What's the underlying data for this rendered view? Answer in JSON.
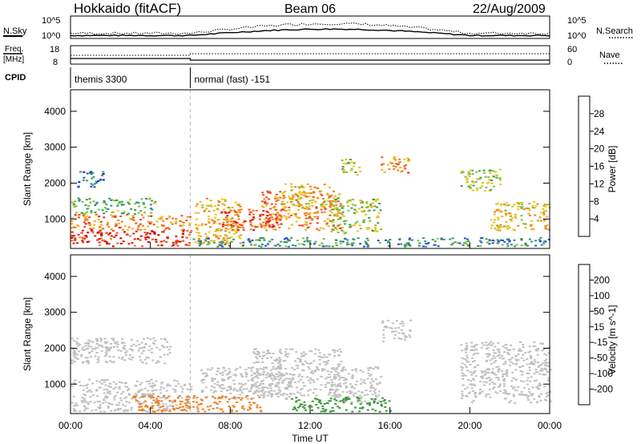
{
  "header": {
    "station": "Hokkaido (fitACF)",
    "beam": "Beam 06",
    "date": "22/Aug/2009"
  },
  "chart_data": [
    {
      "type": "line",
      "name": "noise-panel",
      "left_label": "N.Sky",
      "left_ticks": [
        "10^5",
        "10^0"
      ],
      "right_label": "N.Search",
      "right_ticks": [
        "10^5",
        "10^0"
      ]
    },
    {
      "type": "line",
      "name": "freq-panel",
      "left_label_1": "Freq.",
      "left_label_2": "[MHz]",
      "left_ticks": [
        "18",
        "8"
      ],
      "right_label": "Nave",
      "right_ticks": [
        "60",
        "0"
      ]
    },
    {
      "type": "table",
      "name": "cpid-panel",
      "label": "CPID",
      "segments": [
        {
          "start_hour": 0,
          "end_hour": 6,
          "text": "themis 3300"
        },
        {
          "start_hour": 6,
          "end_hour": 24,
          "text": "normal (fast) -151"
        }
      ]
    },
    {
      "type": "heatmap",
      "name": "power-panel",
      "ylabel": "Slant Range [km]",
      "yticks": [
        1000,
        2000,
        3000,
        4000
      ],
      "ylim": [
        180,
        4600
      ],
      "colorbar": {
        "label": "Power [dB]",
        "ticks": [
          4,
          8,
          12,
          16,
          20,
          24,
          28
        ],
        "range": [
          0,
          32
        ],
        "colors": [
          "#1010e0",
          "#2450d0",
          "#2f8f8f",
          "#40a040",
          "#80c040",
          "#d8d020",
          "#f4b020",
          "#f08020",
          "#f05020",
          "#e81818",
          "#d00000"
        ]
      },
      "regions": [
        {
          "t0": 0.0,
          "t1": 6.0,
          "r0": 250,
          "r1": 700,
          "v": 27
        },
        {
          "t0": 0.0,
          "t1": 6.0,
          "r0": 700,
          "r1": 1150,
          "v": 22
        },
        {
          "t0": 0.0,
          "t1": 4.2,
          "r0": 1150,
          "r1": 1600,
          "v": 11
        },
        {
          "t0": 0.3,
          "t1": 1.6,
          "r0": 1900,
          "r1": 2350,
          "v": 6
        },
        {
          "t0": 6.2,
          "t1": 8.5,
          "r0": 300,
          "r1": 1600,
          "v": 19
        },
        {
          "t0": 7.5,
          "t1": 10.5,
          "r0": 700,
          "r1": 1300,
          "v": 25
        },
        {
          "t0": 9.5,
          "t1": 13.5,
          "r0": 700,
          "r1": 1800,
          "v": 22
        },
        {
          "t0": 10.5,
          "t1": 13.0,
          "r0": 1300,
          "r1": 2000,
          "v": 18
        },
        {
          "t0": 13.0,
          "t1": 15.5,
          "r0": 600,
          "r1": 1600,
          "v": 14
        },
        {
          "t0": 15.5,
          "t1": 17.0,
          "r0": 2300,
          "r1": 2800,
          "v": 22
        },
        {
          "t0": 13.5,
          "t1": 14.5,
          "r0": 2200,
          "r1": 2700,
          "v": 14
        },
        {
          "t0": 19.5,
          "t1": 21.5,
          "r0": 1800,
          "r1": 2400,
          "v": 14
        },
        {
          "t0": 21.0,
          "t1": 24.0,
          "r0": 700,
          "r1": 1500,
          "v": 18
        },
        {
          "t0": 6.0,
          "t1": 24.0,
          "r0": 250,
          "r1": 500,
          "v": 8
        }
      ]
    },
    {
      "type": "heatmap",
      "name": "velocity-panel",
      "ylabel": "Slant Range [km]",
      "yticks": [
        1000,
        2000,
        3000,
        4000
      ],
      "ylim": [
        180,
        4600
      ],
      "xticks": [
        "00:00",
        "04:00",
        "08:00",
        "12:00",
        "16:00",
        "20:00",
        "00:00"
      ],
      "xlabel": "Time UT",
      "colorbar": {
        "label": "Velocity [m s^-1]",
        "ticks": [
          200,
          100,
          50,
          15,
          -15,
          -50,
          -100,
          -200
        ],
        "colors": [
          "#1a3cc8",
          "#3a8a8a",
          "#3a9a3a",
          "#66cc33",
          "#c0c0c0",
          "#f0b030",
          "#f08020",
          "#f05020",
          "#e01818"
        ]
      },
      "regions": [
        {
          "t0": 0.0,
          "t1": 6.0,
          "r0": 250,
          "r1": 1150,
          "v": 0
        },
        {
          "t0": 0.0,
          "t1": 5.0,
          "r0": 1600,
          "r1": 2300,
          "v": 0
        },
        {
          "t0": 6.5,
          "t1": 11.0,
          "r0": 600,
          "r1": 1500,
          "v": 0
        },
        {
          "t0": 9.0,
          "t1": 13.5,
          "r0": 700,
          "r1": 2000,
          "v": 0
        },
        {
          "t0": 13.0,
          "t1": 15.5,
          "r0": 500,
          "r1": 1500,
          "v": 0
        },
        {
          "t0": 15.5,
          "t1": 17.0,
          "r0": 2200,
          "r1": 2800,
          "v": 0
        },
        {
          "t0": 19.5,
          "t1": 24.0,
          "r0": 500,
          "r1": 2200,
          "v": 0
        },
        {
          "t0": 3.0,
          "t1": 9.5,
          "r0": 250,
          "r1": 700,
          "v": -60
        },
        {
          "t0": 11.0,
          "t1": 16.0,
          "r0": 250,
          "r1": 650,
          "v": 60
        }
      ]
    }
  ]
}
